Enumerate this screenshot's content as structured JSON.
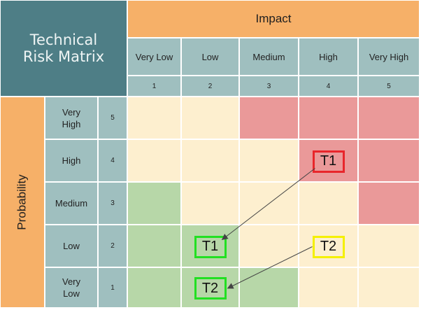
{
  "title": "Technical Risk Matrix",
  "impact_label": "Impact",
  "probability_label": "Probability",
  "impact_levels": [
    {
      "label": "Very Low",
      "number": "1"
    },
    {
      "label": "Low",
      "number": "2"
    },
    {
      "label": "Medium",
      "number": "3"
    },
    {
      "label": "High",
      "number": "4"
    },
    {
      "label": "Very High",
      "number": "5"
    }
  ],
  "probability_levels": [
    {
      "label": "Very High",
      "number": "5"
    },
    {
      "label": "High",
      "number": "4"
    },
    {
      "label": "Medium",
      "number": "3"
    },
    {
      "label": "Low",
      "number": "2"
    },
    {
      "label": "Very Low",
      "number": "1"
    }
  ],
  "colors": {
    "low": "#b7d7a8",
    "medium": "#fdefcf",
    "high": "#ea9999",
    "box_red": "#e8262b",
    "box_yellow": "#f4f000",
    "box_green": "#22e022"
  },
  "grid": [
    [
      "medium",
      "medium",
      "high",
      "high",
      "high"
    ],
    [
      "medium",
      "medium",
      "medium",
      "high",
      "high"
    ],
    [
      "low",
      "medium",
      "medium",
      "medium",
      "high"
    ],
    [
      "low",
      "low",
      "medium",
      "medium",
      "medium"
    ],
    [
      "low",
      "low",
      "low",
      "medium",
      "medium"
    ]
  ],
  "risks": [
    {
      "id": "T1",
      "impact": 4,
      "probability": 4,
      "color": "box_red"
    },
    {
      "id": "T2",
      "impact": 4,
      "probability": 2,
      "color": "box_yellow"
    },
    {
      "id": "T1",
      "impact": 2,
      "probability": 2,
      "color": "box_green"
    },
    {
      "id": "T2",
      "impact": 2,
      "probability": 1,
      "color": "box_green"
    }
  ],
  "moves": [
    {
      "from": 0,
      "to": 2
    },
    {
      "from": 1,
      "to": 3
    }
  ]
}
